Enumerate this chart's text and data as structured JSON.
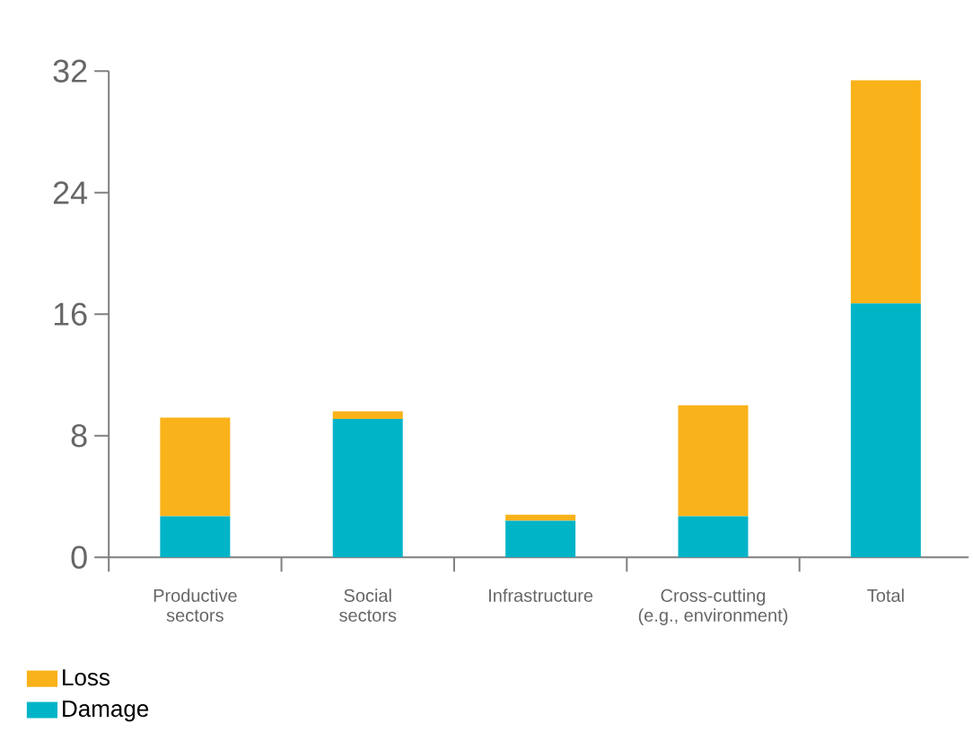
{
  "chart_data": {
    "type": "bar",
    "stacked": true,
    "categories": [
      "Productive\nsectors",
      "Social\nsectors",
      "Infrastructure",
      "Cross-cutting\n(e.g., environment)",
      "Total"
    ],
    "series": [
      {
        "name": "Damage",
        "color": "#00b4c8",
        "values": [
          2.7,
          9.1,
          2.4,
          2.7,
          16.7
        ]
      },
      {
        "name": "Loss",
        "color": "#f9b21a",
        "values": [
          6.5,
          0.5,
          0.4,
          7.3,
          14.7
        ]
      }
    ],
    "ylim": [
      0,
      32
    ],
    "yticks": [
      0,
      8,
      16,
      24,
      32
    ],
    "grid": false,
    "legend": "bottom left"
  }
}
